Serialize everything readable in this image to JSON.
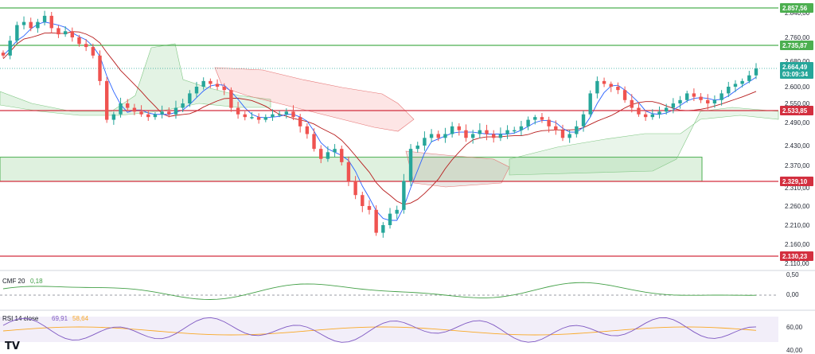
{
  "chart_data": {
    "type": "candlestick",
    "price_axis": {
      "ticks": [
        "2.840,00",
        "2.760,00",
        "2.680,00",
        "2.600,00",
        "2.550,00",
        "2.490,00",
        "2.430,00",
        "2.370,00",
        "2.310,00",
        "2.260,00",
        "2.210,00",
        "2.160,00",
        "2.110,00"
      ],
      "tick_values": [
        2840,
        2760,
        2680,
        2600,
        2550,
        2490,
        2430,
        2370,
        2310,
        2260,
        2210,
        2160,
        2110
      ]
    },
    "levels": [
      {
        "label": "2.857,56",
        "value": 2857.56,
        "color": "#4caf50"
      },
      {
        "label": "2.735,87",
        "value": 2735.87,
        "color": "#4caf50"
      },
      {
        "label": "2.533,85",
        "value": 2533.85,
        "color": "#d32f3f"
      },
      {
        "label": "2.329,10",
        "value": 2329.1,
        "color": "#d32f3f"
      },
      {
        "label": "2.130,23",
        "value": 2130.23,
        "color": "#d32f3f"
      }
    ],
    "current_price": {
      "label": "2.664,49",
      "value": 2664.49,
      "countdown": "03:09:34",
      "color": "#26a69a"
    },
    "zone": {
      "from": 2329.1,
      "to": 2395,
      "color": "#4caf50"
    },
    "close_series": [
      2700,
      2750,
      2800,
      2810,
      2790,
      2810,
      2830,
      2790,
      2770,
      2780,
      2760,
      2740,
      2730,
      2700,
      2620,
      2500,
      2520,
      2550,
      2540,
      2530,
      2520,
      2510,
      2520,
      2530,
      2520,
      2540,
      2550,
      2580,
      2600,
      2620,
      2610,
      2600,
      2590,
      2540,
      2520,
      2510,
      2510,
      2500,
      2510,
      2520,
      2520,
      2530,
      2510,
      2480,
      2460,
      2420,
      2390,
      2410,
      2420,
      2380,
      2330,
      2290,
      2260,
      2250,
      2190,
      2210,
      2240,
      2250,
      2330,
      2420,
      2430,
      2450,
      2460,
      2450,
      2460,
      2480,
      2470,
      2450,
      2460,
      2470,
      2460,
      2450,
      2460,
      2470,
      2470,
      2480,
      2500,
      2510,
      2500,
      2480,
      2470,
      2450,
      2460,
      2480,
      2520,
      2580,
      2620,
      2610,
      2600,
      2590,
      2560,
      2540,
      2520,
      2510,
      2520,
      2530,
      2540,
      2550,
      2560,
      2580,
      2570,
      2560,
      2550,
      2560,
      2580,
      2600,
      2610,
      2620,
      2640,
      2664
    ],
    "indicators": [
      {
        "name": "CMF",
        "params": "20",
        "value": "0,18",
        "axis": [
          "0,50",
          "0,00"
        ],
        "color": "#43a047"
      },
      {
        "name": "RSI",
        "params": "14 close",
        "value": "69,91",
        "value2": "58,64",
        "axis": [
          "60,00",
          "40,00"
        ],
        "color": "#7e57c2",
        "color2": "#f9a825"
      }
    ]
  },
  "watermark": "TV"
}
